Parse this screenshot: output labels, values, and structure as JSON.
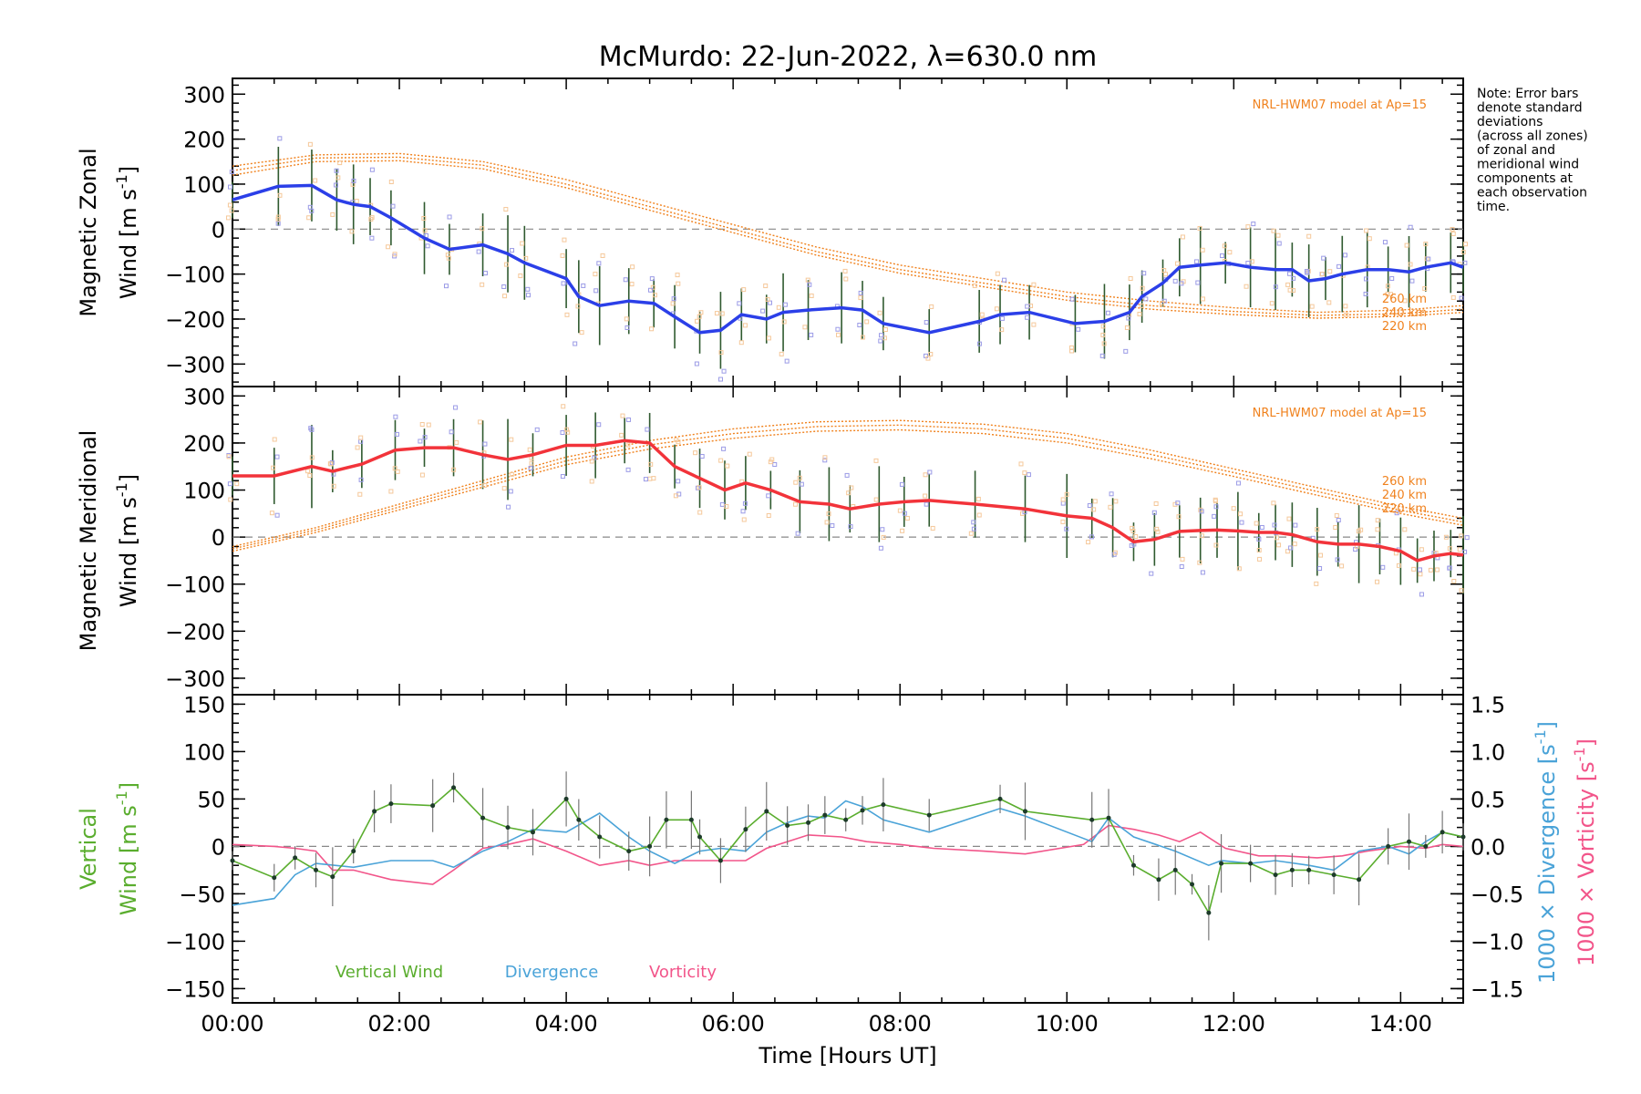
{
  "title": "McMurdo: 22-Jun-2022, λ=630.0 nm",
  "note_lines": [
    "Note: Error bars",
    "denote standard",
    "deviations",
    "(across all zones)",
    "of zonal and",
    "meridional wind",
    "components at",
    "each observation",
    "time."
  ],
  "x_axis": {
    "label": "Time [Hours UT]",
    "ticks": [
      "00:00",
      "02:00",
      "04:00",
      "06:00",
      "08:00",
      "10:00",
      "12:00",
      "14:00"
    ]
  },
  "model_label": "NRL-HWM07 model at Ap=15",
  "altitude_labels": [
    "260 km",
    "240 km",
    "220 km"
  ],
  "colors": {
    "zonal": "#2b3fe8",
    "meridional": "#f2333a",
    "vertical": "#5aad2e",
    "divergence": "#4aa3d8",
    "vorticity": "#f2558a",
    "model": "#f0821e",
    "scatter": "#9b9be6"
  },
  "panels": {
    "zonal": {
      "ylabel_line1": "Magnetic Zonal",
      "ylabel_line2": "Wind [m s",
      "ylabel_sup": "-1",
      "ylabel_close": "]",
      "yticks": [
        "300",
        "200",
        "100",
        "0",
        "−100",
        "−200",
        "−300"
      ]
    },
    "meridional": {
      "ylabel_line1": "Magnetic Meridional",
      "ylabel_line2": "Wind [m s",
      "ylabel_sup": "-1",
      "ylabel_close": "]",
      "yticks": [
        "300",
        "200",
        "100",
        "0",
        "−100",
        "−200",
        "−300"
      ]
    },
    "vertical": {
      "ylabel_line1": "Vertical",
      "ylabel_line2": "Wind [m s",
      "ylabel_sup": "-1",
      "ylabel_close": "]",
      "yticks": [
        "150",
        "100",
        "50",
        "0",
        "−50",
        "−100",
        "−150"
      ],
      "right_ticks": [
        "1.5",
        "1.0",
        "0.5",
        "0.0",
        "−0.5",
        "−1.0",
        "−1.5"
      ],
      "right_label_div": "1000 × Divergence [s",
      "right_label_vort": "1000 × Vorticity [s",
      "right_sup": "-1",
      "right_close": "]",
      "legend": [
        "Vertical Wind",
        "Divergence",
        "Vorticity"
      ]
    }
  },
  "chart_data": [
    {
      "type": "line",
      "title": "McMurdo: 22-Jun-2022, λ=630.0 nm",
      "xlabel": "Time [Hours UT]",
      "ylabel": "Magnetic Zonal Wind [m s-1]",
      "xlim": [
        0,
        14.75
      ],
      "ylim": [
        -350,
        335
      ],
      "series": [
        {
          "name": "zonal",
          "x": [
            0,
            0.55,
            0.95,
            1.25,
            1.45,
            1.65,
            1.9,
            2.3,
            2.6,
            3.0,
            3.3,
            3.5,
            4.0,
            4.15,
            4.4,
            4.75,
            5.05,
            5.3,
            5.6,
            5.85,
            6.1,
            6.4,
            6.6,
            6.9,
            7.3,
            7.55,
            7.8,
            8.35,
            8.95,
            9.2,
            9.55,
            10.1,
            10.45,
            10.75,
            10.9,
            11.15,
            11.35,
            11.6,
            11.9,
            12.2,
            12.5,
            12.7,
            12.9,
            13.1,
            13.3,
            13.6,
            13.85,
            14.1,
            14.3,
            14.6,
            14.75
          ],
          "y": [
            65,
            95,
            97,
            65,
            55,
            50,
            25,
            -20,
            -45,
            -35,
            -55,
            -75,
            -110,
            -150,
            -170,
            -160,
            -165,
            -195,
            -230,
            -225,
            -190,
            -200,
            -185,
            -180,
            -175,
            -180,
            -210,
            -230,
            -205,
            -190,
            -185,
            -210,
            -205,
            -185,
            -150,
            -120,
            -85,
            -80,
            -75,
            -85,
            -90,
            -90,
            -115,
            -110,
            -100,
            -90,
            -90,
            -95,
            -85,
            -75,
            -85
          ]
        },
        {
          "name": "260 km",
          "x": [
            0,
            1,
            2,
            3,
            4,
            5,
            6,
            7,
            8,
            9,
            10,
            11,
            12,
            13,
            14,
            14.75
          ],
          "y": [
            140,
            165,
            168,
            150,
            110,
            60,
            10,
            -40,
            -80,
            -110,
            -140,
            -160,
            -175,
            -185,
            -180,
            -170
          ]
        },
        {
          "name": "240 km",
          "x": [
            0,
            1,
            2,
            3,
            4,
            5,
            6,
            7,
            8,
            9,
            10,
            11,
            12,
            13,
            14,
            14.75
          ],
          "y": [
            130,
            158,
            160,
            142,
            100,
            50,
            0,
            -50,
            -90,
            -120,
            -150,
            -170,
            -183,
            -192,
            -188,
            -178
          ]
        },
        {
          "name": "220 km",
          "x": [
            0,
            1,
            2,
            3,
            4,
            5,
            6,
            7,
            8,
            9,
            10,
            11,
            12,
            13,
            14,
            14.75
          ],
          "y": [
            120,
            150,
            152,
            134,
            92,
            42,
            -8,
            -58,
            -98,
            -128,
            -158,
            -178,
            -190,
            -198,
            -194,
            -185
          ]
        }
      ]
    },
    {
      "type": "line",
      "xlabel": "Time [Hours UT]",
      "ylabel": "Magnetic Meridional Wind [m s-1]",
      "xlim": [
        0,
        14.75
      ],
      "ylim": [
        -335,
        320
      ],
      "series": [
        {
          "name": "meridional",
          "x": [
            0,
            0.5,
            0.95,
            1.2,
            1.55,
            1.95,
            2.3,
            2.65,
            3.0,
            3.3,
            3.6,
            4.0,
            4.35,
            4.7,
            5.0,
            5.3,
            5.6,
            5.9,
            6.15,
            6.45,
            6.8,
            7.15,
            7.4,
            7.75,
            8.05,
            8.35,
            8.9,
            9.5,
            10.0,
            10.3,
            10.55,
            10.8,
            11.05,
            11.35,
            11.6,
            11.8,
            12.05,
            12.3,
            12.5,
            12.7,
            13.0,
            13.25,
            13.5,
            13.75,
            14.0,
            14.2,
            14.4,
            14.6,
            14.75
          ],
          "y": [
            130,
            130,
            150,
            140,
            155,
            185,
            190,
            190,
            175,
            165,
            175,
            195,
            195,
            205,
            200,
            150,
            125,
            100,
            115,
            100,
            75,
            70,
            60,
            70,
            75,
            78,
            70,
            60,
            45,
            40,
            20,
            -10,
            -5,
            12,
            14,
            15,
            13,
            10,
            10,
            5,
            -10,
            -15,
            -15,
            -20,
            -30,
            -50,
            -40,
            -35,
            -38
          ]
        },
        {
          "name": "260 km",
          "x": [
            0,
            1,
            2,
            3,
            4,
            5,
            6,
            7,
            8,
            9,
            10,
            11,
            12,
            13,
            14,
            14.75
          ],
          "y": [
            -20,
            20,
            70,
            120,
            170,
            205,
            230,
            245,
            248,
            240,
            220,
            185,
            145,
            105,
            65,
            40
          ]
        },
        {
          "name": "240 km",
          "x": [
            0,
            1,
            2,
            3,
            4,
            5,
            6,
            7,
            8,
            9,
            10,
            11,
            12,
            13,
            14,
            14.75
          ],
          "y": [
            -25,
            15,
            64,
            113,
            162,
            196,
            220,
            235,
            238,
            230,
            210,
            176,
            137,
            97,
            57,
            32
          ]
        },
        {
          "name": "220 km",
          "x": [
            0,
            1,
            2,
            3,
            4,
            5,
            6,
            7,
            8,
            9,
            10,
            11,
            12,
            13,
            14,
            14.75
          ],
          "y": [
            -30,
            10,
            58,
            106,
            154,
            187,
            210,
            225,
            228,
            220,
            200,
            167,
            129,
            89,
            50,
            25
          ]
        }
      ]
    },
    {
      "type": "line",
      "xlabel": "Time [Hours UT]",
      "ylabel": "Vertical Wind [m s-1]",
      "y2label": "1000 × Divergence / Vorticity [s-1]",
      "xlim": [
        0,
        14.75
      ],
      "ylim": [
        -165,
        160
      ],
      "y2lim": [
        -1.65,
        1.6
      ],
      "series": [
        {
          "name": "Vertical Wind",
          "x": [
            0,
            0.5,
            0.75,
            1.0,
            1.2,
            1.45,
            1.7,
            1.9,
            2.4,
            2.65,
            3.0,
            3.3,
            3.6,
            4.0,
            4.15,
            4.4,
            4.75,
            5.0,
            5.2,
            5.5,
            5.6,
            5.85,
            6.15,
            6.4,
            6.65,
            6.9,
            7.1,
            7.35,
            7.55,
            7.8,
            8.35,
            9.2,
            9.5,
            10.3,
            10.5,
            10.8,
            11.1,
            11.3,
            11.5,
            11.7,
            11.85,
            12.2,
            12.5,
            12.7,
            12.9,
            13.2,
            13.5,
            13.85,
            14.1,
            14.3,
            14.5,
            14.75
          ],
          "y": [
            -15,
            -33,
            -12,
            -25,
            -32,
            -5,
            37,
            45,
            43,
            62,
            30,
            20,
            15,
            50,
            28,
            10,
            -5,
            0,
            28,
            28,
            10,
            -15,
            18,
            37,
            22,
            25,
            33,
            28,
            38,
            44,
            33,
            50,
            37,
            28,
            30,
            -20,
            -35,
            -25,
            -40,
            -70,
            -18,
            -18,
            -30,
            -25,
            -25,
            -30,
            -35,
            0,
            5,
            0,
            15,
            10
          ]
        },
        {
          "name": "Divergence",
          "x": [
            0,
            0.5,
            0.75,
            1.0,
            1.45,
            1.9,
            2.4,
            2.65,
            3.0,
            3.3,
            3.6,
            4.0,
            4.4,
            4.75,
            5.0,
            5.3,
            5.6,
            5.85,
            6.15,
            6.4,
            6.65,
            6.9,
            7.1,
            7.35,
            7.55,
            7.8,
            8.35,
            9.2,
            9.5,
            10.3,
            10.5,
            10.8,
            11.3,
            11.7,
            11.85,
            12.2,
            12.5,
            12.9,
            13.2,
            13.5,
            13.85,
            14.1,
            14.3,
            14.5,
            14.75
          ],
          "y": [
            -0.62,
            -0.55,
            -0.3,
            -0.18,
            -0.22,
            -0.15,
            -0.15,
            -0.22,
            -0.05,
            0.05,
            0.18,
            0.15,
            0.35,
            0.1,
            -0.05,
            -0.18,
            -0.05,
            -0.02,
            -0.05,
            0.15,
            0.25,
            0.32,
            0.3,
            0.48,
            0.42,
            0.28,
            0.15,
            0.4,
            0.32,
            0.05,
            0.3,
            0.1,
            -0.05,
            -0.2,
            -0.15,
            -0.18,
            -0.15,
            -0.2,
            -0.25,
            -0.05,
            0.0,
            -0.08,
            0.05,
            0.15,
            0.1
          ]
        },
        {
          "name": "Vorticity",
          "x": [
            0,
            0.5,
            0.75,
            1.0,
            1.2,
            1.45,
            1.9,
            2.4,
            2.65,
            3.0,
            3.3,
            3.6,
            4.0,
            4.4,
            4.75,
            5.0,
            5.3,
            5.6,
            5.85,
            6.15,
            6.4,
            6.65,
            6.9,
            7.3,
            7.6,
            8.0,
            8.4,
            9.0,
            9.5,
            10.2,
            10.5,
            10.8,
            11.1,
            11.35,
            11.6,
            11.9,
            12.3,
            12.6,
            13.0,
            13.3,
            13.6,
            14.0,
            14.3,
            14.5,
            14.75
          ],
          "y": [
            0.02,
            0.0,
            -0.02,
            -0.05,
            -0.25,
            -0.25,
            -0.35,
            -0.4,
            -0.25,
            -0.02,
            0.02,
            0.08,
            -0.05,
            -0.2,
            -0.15,
            -0.2,
            -0.15,
            -0.15,
            -0.15,
            -0.15,
            -0.02,
            0.05,
            0.12,
            0.1,
            0.05,
            0.02,
            -0.02,
            -0.05,
            -0.08,
            0.02,
            0.22,
            0.18,
            0.12,
            0.05,
            0.15,
            -0.02,
            -0.1,
            -0.1,
            -0.12,
            -0.1,
            -0.05,
            0.0,
            -0.02,
            0.02,
            0.0
          ]
        }
      ]
    }
  ]
}
